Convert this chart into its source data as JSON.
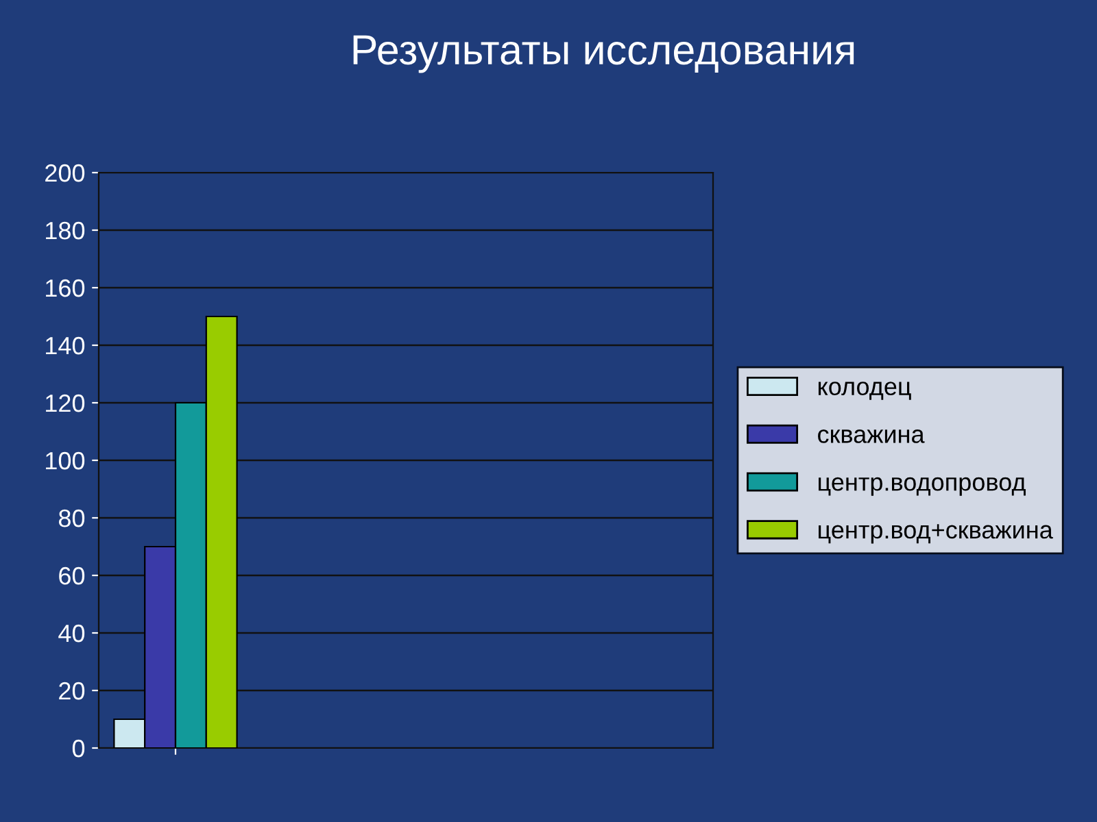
{
  "chart_data": {
    "type": "bar",
    "title": "Результаты исследования",
    "categories": [
      null
    ],
    "series": [
      {
        "name": "колодец",
        "color": "#cce8f0",
        "values": [
          10
        ]
      },
      {
        "name": "скважина",
        "color": "#3a3aa8",
        "values": [
          70
        ]
      },
      {
        "name": "центр.водопровод",
        "color": "#129a9a",
        "values": [
          120
        ]
      },
      {
        "name": "центр.вод+скважина",
        "color": "#99cc00",
        "values": [
          150
        ]
      }
    ],
    "ylim": [
      0,
      200
    ],
    "yticks": [
      0,
      20,
      40,
      60,
      80,
      100,
      120,
      140,
      160,
      180,
      200
    ],
    "grid": "y",
    "legend": "right"
  }
}
